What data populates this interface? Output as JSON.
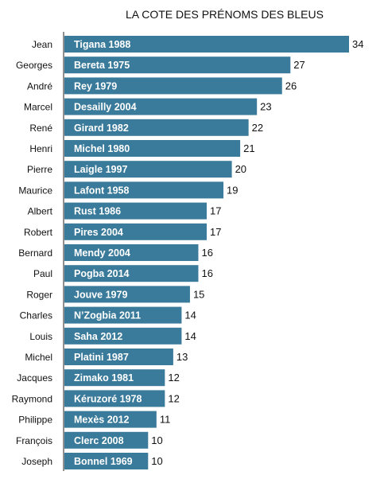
{
  "chart_data": {
    "type": "bar",
    "orientation": "horizontal",
    "title": "LA COTE DES PRÉNOMS DES BLEUS",
    "bar_color": "#3a7a9a",
    "categories": [
      "Jean",
      "Georges",
      "André",
      "Marcel",
      "René",
      "Henri",
      "Pierre",
      "Maurice",
      "Albert",
      "Robert",
      "Bernard",
      "Paul",
      "Roger",
      "Charles",
      "Louis",
      "Michel",
      "Jacques",
      "Raymond",
      "Philippe",
      "François",
      "Joseph"
    ],
    "bar_labels": [
      "Tigana 1988",
      "Bereta 1975",
      "Rey 1979",
      "Desailly 2004",
      "Girard 1982",
      "Michel 1980",
      "Laigle 1997",
      "Lafont 1958",
      "Rust 1986",
      "Pires 2004",
      "Mendy 2004",
      "Pogba 2014",
      "Jouve 1979",
      "N’Zogbia 2011",
      "Saha 2012",
      "Platini 1987",
      "Zimako 1981",
      "Kéruzoré 1978",
      "Mexès 2012",
      "Clerc 2008",
      "Bonnel 1969"
    ],
    "values": [
      34,
      27,
      26,
      23,
      22,
      21,
      20,
      19,
      17,
      17,
      16,
      16,
      15,
      14,
      14,
      13,
      12,
      12,
      11,
      10,
      10
    ],
    "xlim": [
      0,
      34
    ],
    "grid": false,
    "legend": "none"
  }
}
